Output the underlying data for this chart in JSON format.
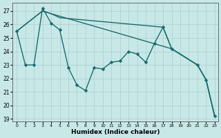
{
  "xlabel": "Humidex (Indice chaleur)",
  "bg_color": "#c8e8e8",
  "line_color": "#1a6b6b",
  "grid_color": "#aacece",
  "xlim": [
    -0.5,
    23.4
  ],
  "ylim": [
    18.8,
    27.6
  ],
  "yticks": [
    19,
    20,
    21,
    22,
    23,
    24,
    25,
    26,
    27
  ],
  "xticks": [
    0,
    1,
    2,
    3,
    4,
    5,
    6,
    7,
    8,
    9,
    10,
    11,
    12,
    13,
    14,
    15,
    16,
    17,
    18,
    19,
    20,
    21,
    22,
    23
  ],
  "line1_x": [
    0,
    1,
    2,
    3,
    4,
    5,
    6,
    7,
    8,
    9,
    10,
    11,
    12,
    13,
    14,
    15,
    16,
    17,
    18,
    21,
    22,
    23
  ],
  "line1_y": [
    25.5,
    23.0,
    23.0,
    27.2,
    26.1,
    25.6,
    22.8,
    21.5,
    21.1,
    22.8,
    22.7,
    23.2,
    23.3,
    24.0,
    23.8,
    23.2,
    24.6,
    25.8,
    24.2,
    23.0,
    21.9,
    19.2
  ],
  "line2_x": [
    0,
    3,
    4,
    18,
    21,
    22,
    23
  ],
  "line2_y": [
    25.5,
    27.0,
    26.8,
    24.2,
    23.0,
    21.9,
    19.2
  ],
  "line3_x": [
    0,
    3,
    4,
    5,
    17,
    18,
    21,
    22,
    23
  ],
  "line3_y": [
    25.5,
    27.0,
    26.8,
    26.5,
    25.8,
    24.2,
    23.0,
    21.9,
    19.2
  ]
}
